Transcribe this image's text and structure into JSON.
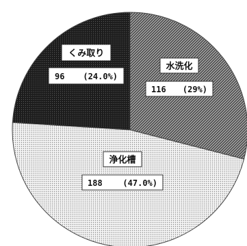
{
  "chart_data": {
    "type": "pie",
    "slices": [
      {
        "label": "水洗化",
        "value": 116,
        "value_text": "116",
        "percent_text": "(29%)",
        "pattern": "diagonal-hatch",
        "color": "#777777"
      },
      {
        "label": "浄化槽",
        "value": 188,
        "value_text": "188",
        "percent_text": "(47.0%)",
        "pattern": "light-dots",
        "color": "#dcdcdc"
      },
      {
        "label": "くみ取り",
        "value": 96,
        "value_text": "96",
        "percent_text": "(24.0%)",
        "pattern": "dark-dots",
        "color": "#222222"
      }
    ],
    "start_angle_deg": 0,
    "direction": "clockwise",
    "legend": "none",
    "label_placement": "inside"
  }
}
